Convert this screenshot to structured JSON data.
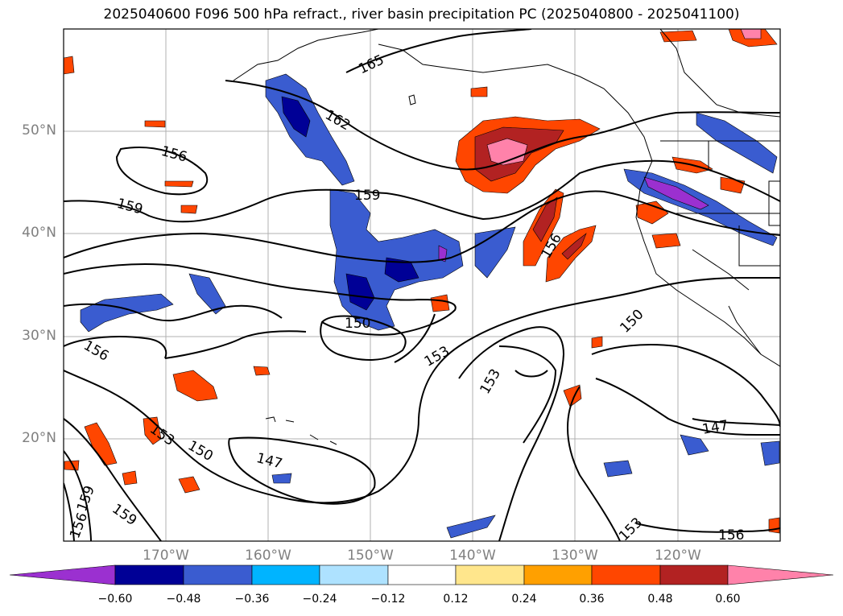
{
  "title": "2025040600 F096 500 hPa refract., river basin precipitation PC (2025040800 - 2025041100)",
  "map": {
    "lon_range": [
      -180,
      -110
    ],
    "lat_range": [
      10,
      60
    ],
    "lat_labels": [
      "50°N",
      "40°N",
      "30°N",
      "20°N"
    ],
    "lon_labels": [
      "170°W",
      "160°W",
      "150°W",
      "140°W",
      "130°W",
      "120°W"
    ],
    "contour_labels": [
      "165",
      "162",
      "156",
      "159",
      "159",
      "156",
      "150",
      "153",
      "153",
      "150",
      "156",
      "153",
      "150",
      "147",
      "147",
      "153",
      "156",
      "159",
      "159",
      "156"
    ]
  },
  "colorbar": {
    "tick_labels": [
      "−0.60",
      "−0.48",
      "−0.36",
      "−0.24",
      "−0.12",
      "0.12",
      "0.24",
      "0.36",
      "0.48",
      "0.60"
    ],
    "colors": [
      "#9b30d0",
      "#000096",
      "#3a5cd0",
      "#00b4ff",
      "#aee2ff",
      "#ffffff",
      "#ffe68c",
      "#ffa000",
      "#ff4600",
      "#b22222",
      "#ff82aa"
    ]
  }
}
